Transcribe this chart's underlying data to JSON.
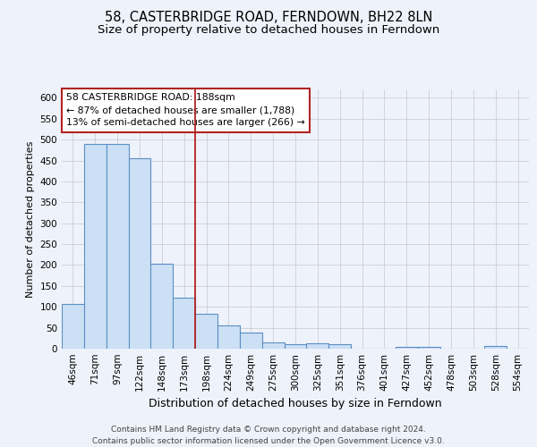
{
  "title": "58, CASTERBRIDGE ROAD, FERNDOWN, BH22 8LN",
  "subtitle": "Size of property relative to detached houses in Ferndown",
  "xlabel": "Distribution of detached houses by size in Ferndown",
  "ylabel": "Number of detached properties",
  "categories": [
    "46sqm",
    "71sqm",
    "97sqm",
    "122sqm",
    "148sqm",
    "173sqm",
    "198sqm",
    "224sqm",
    "249sqm",
    "275sqm",
    "300sqm",
    "325sqm",
    "351sqm",
    "376sqm",
    "401sqm",
    "427sqm",
    "452sqm",
    "478sqm",
    "503sqm",
    "528sqm",
    "554sqm"
  ],
  "values": [
    107,
    490,
    490,
    455,
    203,
    122,
    83,
    55,
    38,
    15,
    10,
    12,
    10,
    0,
    0,
    5,
    5,
    0,
    0,
    6,
    0
  ],
  "bar_color": "#cce0f5",
  "bar_edge_color": "#5b8ec4",
  "bar_linewidth": 0.8,
  "property_line_x": 5.5,
  "property_line_color": "#b22222",
  "annotation_text": "58 CASTERBRIDGE ROAD: 188sqm\n← 87% of detached houses are smaller (1,788)\n13% of semi-detached houses are larger (266) →",
  "annotation_box_color": "#ffffff",
  "annotation_box_edge_color": "#b22222",
  "ylim": [
    0,
    620
  ],
  "yticks": [
    0,
    50,
    100,
    150,
    200,
    250,
    300,
    350,
    400,
    450,
    500,
    550,
    600
  ],
  "footer": "Contains HM Land Registry data © Crown copyright and database right 2024.\nContains public sector information licensed under the Open Government Licence v3.0.",
  "bg_color": "#eef2fa",
  "grid_color": "#c8c8c8",
  "title_fontsize": 10.5,
  "subtitle_fontsize": 9.5,
  "xlabel_fontsize": 9,
  "ylabel_fontsize": 8,
  "tick_fontsize": 7.5,
  "footer_fontsize": 6.5,
  "annotation_fontsize": 7.8
}
